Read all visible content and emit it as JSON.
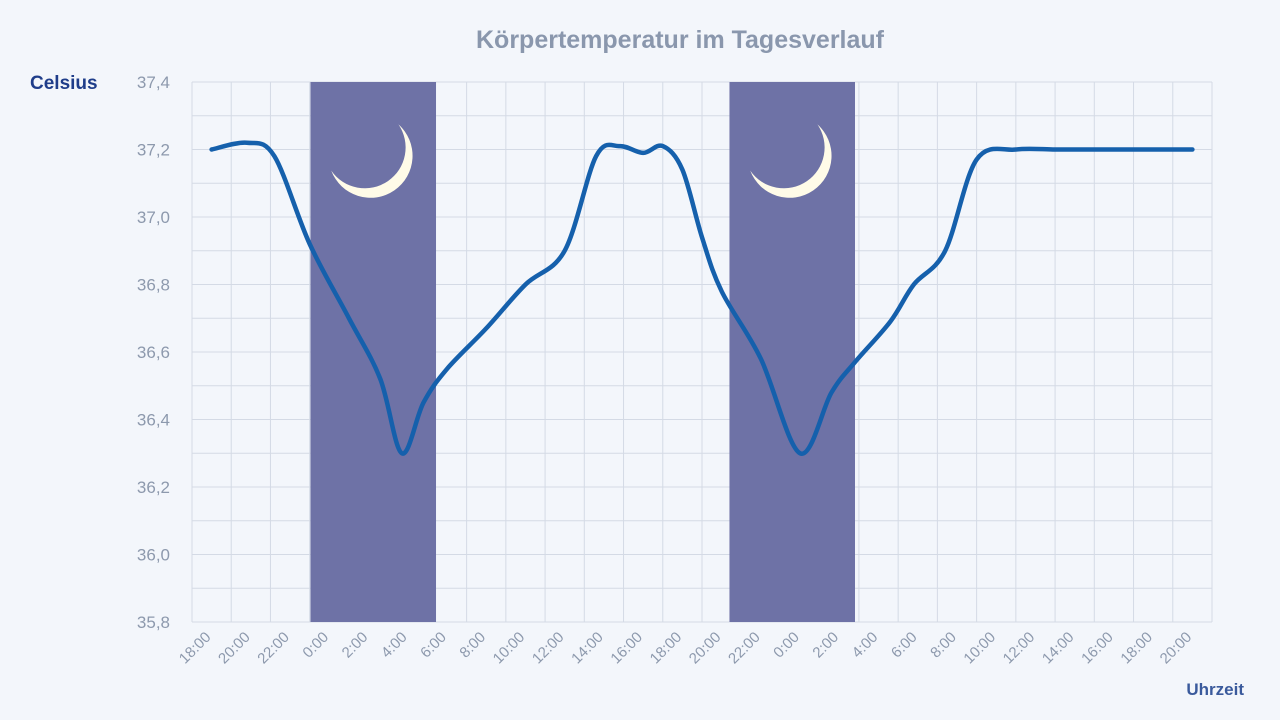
{
  "chart_data": {
    "type": "line",
    "title": "Körpertemperatur  im Tagesverlauf",
    "ylabel": "Celsius",
    "xlabel": "Uhrzeit",
    "ylim": [
      35.8,
      37.4
    ],
    "yticks": [
      "37,4",
      "37,2",
      "37,0",
      "36,8",
      "36,6",
      "36,4",
      "36,2",
      "36,0",
      "35,8"
    ],
    "ytick_values": [
      37.4,
      37.2,
      37.0,
      36.8,
      36.6,
      36.4,
      36.2,
      36.0,
      35.8
    ],
    "categories": [
      "18:00",
      "20:00",
      "22:00",
      "0:00",
      "2:00",
      "4:00",
      "6:00",
      "8:00",
      "10:00",
      "12:00",
      "14:00",
      "16:00",
      "18:00",
      "20:00",
      "22:00",
      "0:00",
      "2:00",
      "4:00",
      "6:00",
      "8:00",
      "10:00",
      "12:00",
      "14:00",
      "16:00",
      "18:00",
      "20:00"
    ],
    "grid": true,
    "series": [
      {
        "color": "#1560ac",
        "x": [
          0,
          0.9,
          1.6,
          2.5,
          3.5,
          4.3,
          4.85,
          5.4,
          6.0,
          7.0,
          8.0,
          9.0,
          9.8,
          10.4,
          11.0,
          11.5,
          12.0,
          12.5,
          13.0,
          14.0,
          15.0,
          15.8,
          16.4,
          17.3,
          17.9,
          18.7,
          19.5,
          20.5,
          21.5,
          22.3,
          23.0,
          23.5,
          24.0,
          24.5,
          25.0
        ],
        "values": [
          37.2,
          37.22,
          37.18,
          36.92,
          36.7,
          36.52,
          36.3,
          36.45,
          36.55,
          36.67,
          36.8,
          36.9,
          37.18,
          37.21,
          37.19,
          37.21,
          37.14,
          36.94,
          36.78,
          36.58,
          36.3,
          36.48,
          36.57,
          36.69,
          36.8,
          36.9,
          37.17,
          37.2,
          37.2,
          37.2,
          37.2,
          37.2,
          37.2,
          37.2,
          37.2
        ]
      }
    ],
    "night_bands": [
      {
        "start": 2.52,
        "end": 5.72,
        "icon": "moon-icon"
      },
      {
        "start": 13.2,
        "end": 16.4,
        "icon": "moon-icon"
      }
    ],
    "colors": {
      "line": "#1560ac",
      "night": "#6e72a6",
      "moon": "#fffbe8",
      "title": "#8a97ad",
      "ylabel": "#1f3d8a",
      "grid": "#d4dae5"
    }
  }
}
